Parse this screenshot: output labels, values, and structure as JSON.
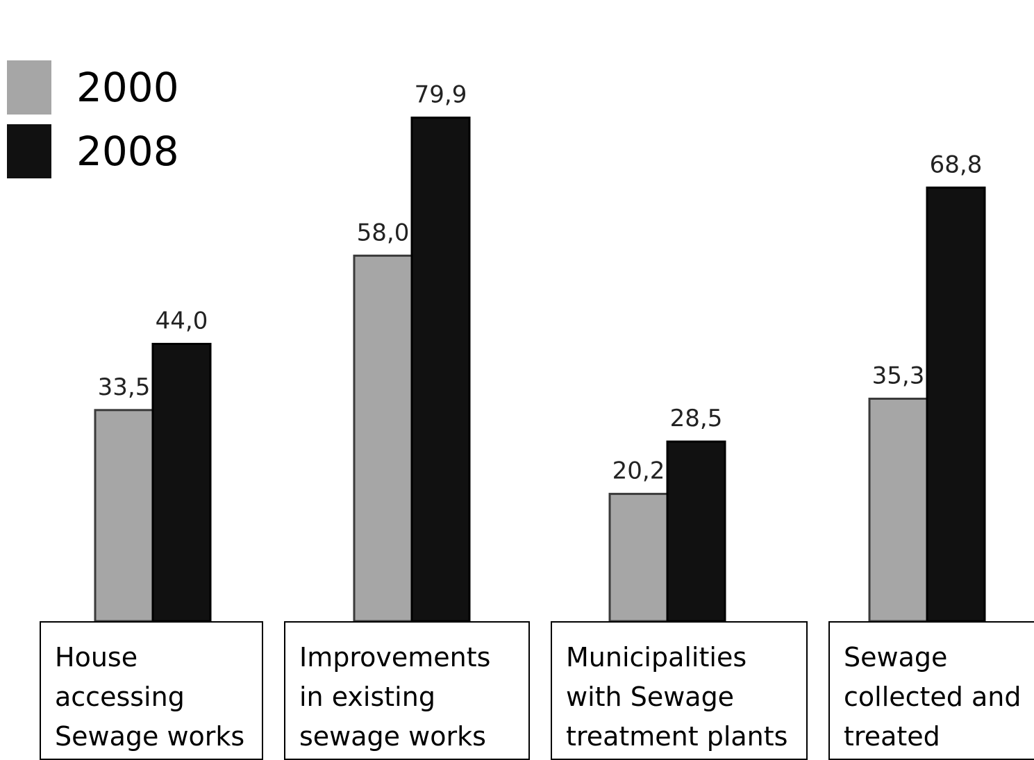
{
  "chart_data": {
    "type": "bar",
    "categories": [
      "House\naccessing\nSewage works",
      "Improvements\nin existing\nsewage works",
      "Municipalities\nwith Sewage\ntreatment plants",
      "Sewage\ncollected and\ntreated"
    ],
    "series": [
      {
        "name": "2000",
        "color": "#a6a6a6",
        "values": [
          33.5,
          58.0,
          20.2,
          35.3
        ],
        "labels": [
          "33,5",
          "58,0",
          "20,2",
          "35,3"
        ]
      },
      {
        "name": "2008",
        "color": "#111111",
        "values": [
          44.0,
          79.9,
          28.5,
          68.8
        ],
        "labels": [
          "44,0",
          "79,9",
          "28,5",
          "68,8"
        ]
      }
    ],
    "ylim": [
      0,
      80
    ],
    "grid": false,
    "legend_position": "top-left"
  }
}
